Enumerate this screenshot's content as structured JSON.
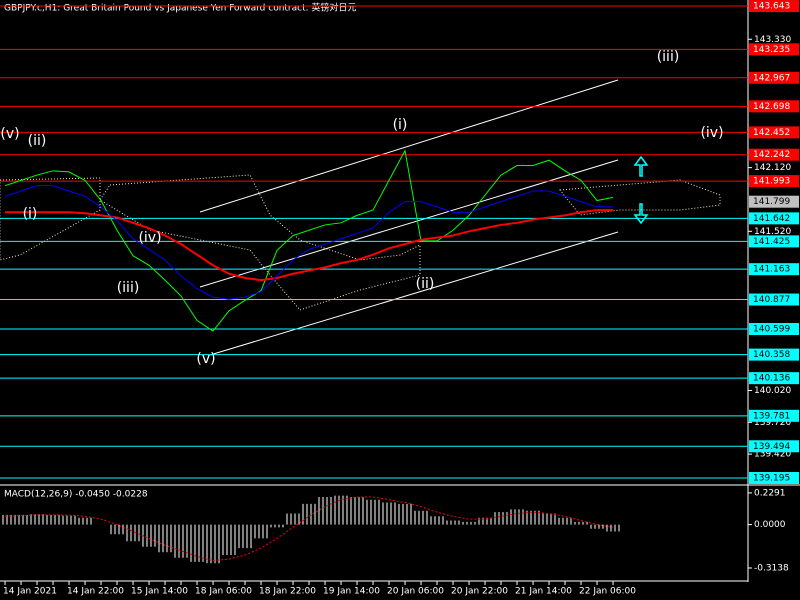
{
  "chart_data": [
    {
      "type": "line",
      "title": "GBPJPY.c,H1:  Great Britain Pound vs Japanese Yen Forward contract. 英镑对日元",
      "categories": [
        "14 Jan 2021",
        null,
        null,
        null,
        "14 Jan 22:00",
        null,
        null,
        null,
        "15 Jan 14:00",
        null,
        null,
        null,
        "18 Jan 06:00",
        null,
        null,
        null,
        "18 Jan 22:00",
        null,
        null,
        null,
        "19 Jan 14:00",
        null,
        null,
        null,
        "20 Jan 06:00",
        null,
        null,
        null,
        "20 Jan 22:00",
        null,
        null,
        null,
        "21 Jan 14:00",
        null,
        null,
        null,
        "22 Jan 06:00",
        null,
        null
      ],
      "series": [
        {
          "color": "#00ff00",
          "values": [
            141.95,
            142.0,
            142.05,
            142.09,
            142.08,
            142.0,
            141.81,
            141.53,
            141.29,
            141.2,
            141.06,
            140.91,
            140.68,
            140.58,
            140.77,
            140.87,
            140.96,
            141.34,
            141.48,
            141.53,
            141.58,
            141.6,
            141.67,
            141.72,
            142.0,
            142.28,
            141.43,
            141.43,
            141.53,
            141.67,
            141.86,
            142.05,
            142.14,
            142.14,
            142.19,
            142.09,
            142.0,
            141.81,
            141.84
          ]
        },
        {
          "color": "#ff0000",
          "values": [
            141.7,
            141.7,
            141.7,
            141.7,
            141.7,
            141.69,
            141.67,
            141.65,
            141.6,
            141.55,
            141.48,
            141.4,
            141.3,
            141.2,
            141.12,
            141.08,
            141.06,
            141.08,
            141.12,
            141.15,
            141.18,
            141.22,
            141.25,
            141.3,
            141.36,
            141.4,
            141.44,
            141.46,
            141.48,
            141.52,
            141.55,
            141.58,
            141.6,
            141.63,
            141.65,
            141.67,
            141.7,
            141.72,
            141.72
          ]
        },
        {
          "color": "#0000ff",
          "values": [
            141.85,
            141.9,
            141.95,
            141.95,
            141.9,
            141.85,
            141.75,
            141.62,
            141.45,
            141.35,
            141.25,
            141.1,
            140.98,
            140.9,
            140.88,
            140.9,
            140.95,
            141.1,
            141.25,
            141.35,
            141.4,
            141.45,
            141.5,
            141.55,
            141.7,
            141.8,
            141.8,
            141.75,
            141.7,
            141.7,
            141.75,
            141.8,
            141.85,
            141.9,
            141.9,
            141.85,
            141.8,
            141.75,
            141.75
          ]
        }
      ],
      "ylim": [
        139.129,
        143.7
      ],
      "yticks": [
        {
          "value": 143.33,
          "label": "143.330"
        },
        {
          "value": 142.12,
          "label": "142.120"
        },
        {
          "value": 141.52,
          "label": "141.520"
        },
        {
          "value": 140.02,
          "label": "140.020"
        },
        {
          "value": 139.72,
          "label": "139.720"
        },
        {
          "value": 139.42,
          "label": "139.420"
        }
      ],
      "levels": [
        {
          "value": 143.643,
          "color": "#ff0000"
        },
        {
          "value": 143.235,
          "color": "#ff0000"
        },
        {
          "value": 142.967,
          "color": "#ff0000"
        },
        {
          "value": 142.698,
          "color": "#ff0000"
        },
        {
          "value": 142.452,
          "color": "#ff0000"
        },
        {
          "value": 142.242,
          "color": "#ff0000"
        },
        {
          "value": 141.993,
          "color": "#ff0000"
        },
        {
          "value": 141.642,
          "color": "#00ffff"
        },
        {
          "value": 141.425,
          "color": "#00ffff"
        },
        {
          "value": 141.163,
          "color": "#00ffff"
        },
        {
          "value": 140.877,
          "color": "#00ffff"
        },
        {
          "value": 140.599,
          "color": "#00ffff"
        },
        {
          "value": 140.358,
          "color": "#00ffff"
        },
        {
          "value": 140.136,
          "color": "#00ffff"
        },
        {
          "value": 139.781,
          "color": "#00ffff"
        },
        {
          "value": 139.494,
          "color": "#00ffff"
        },
        {
          "value": 139.195,
          "color": "#00ffff"
        }
      ],
      "current_price": 141.799,
      "annotations": [
        "(i)",
        "(ii)",
        "(iii)",
        "(iv)",
        "(v)",
        "(i)",
        "(ii)",
        "(iii)",
        "(iv)",
        "(v)"
      ]
    },
    {
      "type": "bar",
      "title": "MACD(12,26,9) -0.0450 -0.0228",
      "series": [
        {
          "color": "#ffffff",
          "values": [
            0.07,
            0.07,
            0.075,
            0.07,
            0.065,
            0.05,
            0.0,
            -0.07,
            -0.12,
            -0.16,
            -0.2,
            -0.24,
            -0.27,
            -0.28,
            -0.22,
            -0.17,
            -0.1,
            -0.02,
            0.08,
            0.15,
            0.2,
            0.21,
            0.2,
            0.18,
            0.16,
            0.15,
            0.1,
            0.06,
            0.03,
            0.02,
            0.05,
            0.09,
            0.11,
            0.1,
            0.08,
            0.05,
            0.02,
            -0.03,
            -0.05
          ]
        },
        {
          "type": "line",
          "color": "#ff0000",
          "values": [
            0.06,
            0.065,
            0.07,
            0.07,
            0.068,
            0.06,
            0.04,
            0.0,
            -0.05,
            -0.1,
            -0.15,
            -0.19,
            -0.23,
            -0.26,
            -0.25,
            -0.22,
            -0.17,
            -0.1,
            -0.02,
            0.06,
            0.13,
            0.18,
            0.2,
            0.2,
            0.18,
            0.16,
            0.13,
            0.09,
            0.06,
            0.04,
            0.04,
            0.06,
            0.08,
            0.09,
            0.08,
            0.06,
            0.03,
            0.0,
            -0.02
          ]
        }
      ],
      "ylim": [
        -0.408,
        0.272
      ],
      "yticks": [
        0.2291,
        {
          "value": 0,
          "label": "0.0000"
        },
        -0.3138
      ]
    }
  ]
}
